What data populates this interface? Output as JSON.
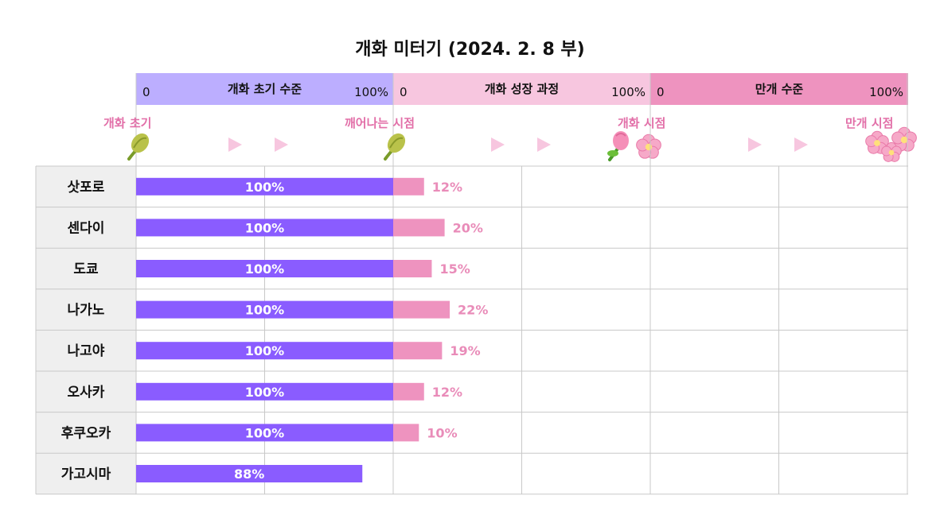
{
  "title": "개화 미터기 (2024. 2. 8 부)",
  "stages": [
    {
      "name": "개화 초기 수준",
      "start": "0",
      "end": "100%",
      "color": "#bcaeff"
    },
    {
      "name": "개화 성장 과정",
      "start": "0",
      "end": "100%",
      "color": "#f7c6df"
    },
    {
      "name": "만개 수준",
      "start": "0",
      "end": "100%",
      "color": "#ee93bf"
    }
  ],
  "milestones": [
    "개화 초기",
    "깨어나는 시점",
    "개화 시점",
    "만개 시점"
  ],
  "colors": {
    "stage1_bar": "#8a5cff",
    "stage2_bar": "#ee93bf",
    "label_pink": "#e26fa8",
    "grid": "#c8c8c8",
    "city_bg": "#efefef"
  },
  "chart_data": {
    "type": "bar",
    "orientation": "horizontal",
    "categories": [
      "삿포로",
      "센다이",
      "도쿄",
      "나가노",
      "나고야",
      "오사카",
      "후쿠오카",
      "가고시마"
    ],
    "series": [
      {
        "name": "개화 초기 수준",
        "values": [
          100,
          100,
          100,
          100,
          100,
          100,
          100,
          88
        ],
        "labels": [
          "100%",
          "100%",
          "100%",
          "100%",
          "100%",
          "100%",
          "100%",
          "88%"
        ]
      },
      {
        "name": "개화 성장 과정",
        "values": [
          12,
          20,
          15,
          22,
          19,
          12,
          10,
          null
        ],
        "labels": [
          "12%",
          "20%",
          "15%",
          "22%",
          "19%",
          "12%",
          "10%",
          ""
        ]
      },
      {
        "name": "만개 수준",
        "values": [
          null,
          null,
          null,
          null,
          null,
          null,
          null,
          null
        ]
      }
    ],
    "ylim": [
      0,
      100
    ],
    "title": "개화 미터기 (2024. 2. 8 부)"
  }
}
